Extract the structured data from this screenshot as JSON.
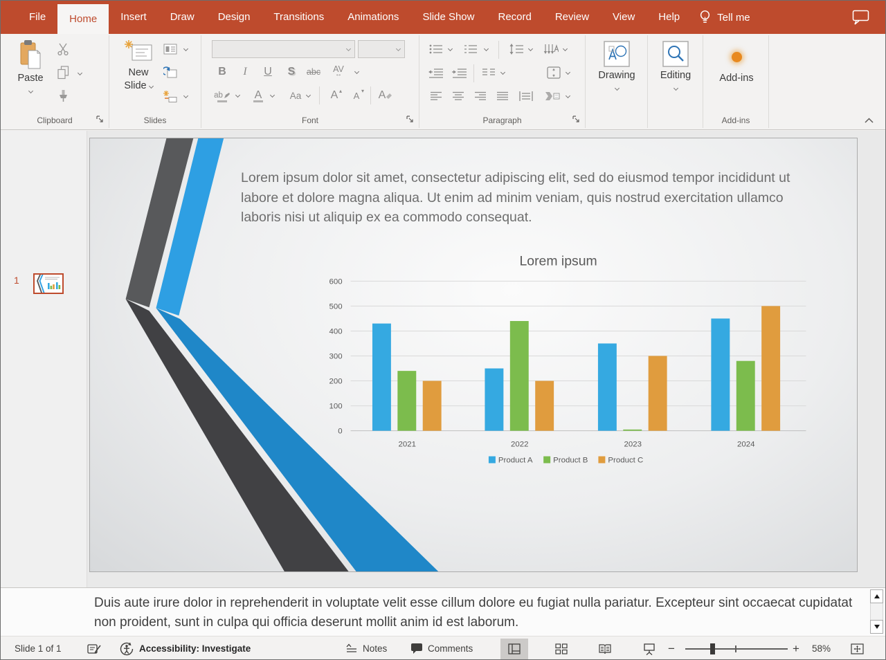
{
  "colors": {
    "accent_red": "#BE4B2D",
    "chart_blue": "#35A9E1",
    "chart_green": "#7CBC4D",
    "chart_orange": "#E09C3E",
    "band_dark_top": "#58595B",
    "band_dark_bottom": "#414144",
    "band_blue_top": "#2E9FE3",
    "band_blue_bottom": "#1F87C8"
  },
  "icons": {
    "h_arrow": "↔",
    "up_triangle": "▴",
    "down_triangle": "▾",
    "minus": "−",
    "plus": "+"
  },
  "menu": {
    "tabs": [
      {
        "id": "file",
        "label": "File",
        "selected": false
      },
      {
        "id": "home",
        "label": "Home",
        "selected": true
      },
      {
        "id": "insert",
        "label": "Insert",
        "selected": false
      },
      {
        "id": "draw",
        "label": "Draw",
        "selected": false
      },
      {
        "id": "design",
        "label": "Design",
        "selected": false
      },
      {
        "id": "transitions",
        "label": "Transitions",
        "selected": false
      },
      {
        "id": "animations",
        "label": "Animations",
        "selected": false
      },
      {
        "id": "slide-show",
        "label": "Slide Show",
        "selected": false
      },
      {
        "id": "record",
        "label": "Record",
        "selected": false
      },
      {
        "id": "review",
        "label": "Review",
        "selected": false
      },
      {
        "id": "view",
        "label": "View",
        "selected": false
      },
      {
        "id": "help",
        "label": "Help",
        "selected": false
      }
    ],
    "tell_me": "Tell me"
  },
  "ribbon": {
    "paste_label": "Paste",
    "new_slide_line1": "New",
    "new_slide_line2": "Slide",
    "drawing_label": "Drawing",
    "editing_label": "Editing",
    "addins_label": "Add-ins",
    "group_labels": {
      "clipboard": "Clipboard",
      "slides": "Slides",
      "font": "Font",
      "paragraph": "Paragraph",
      "addins": "Add-ins"
    },
    "font_controls": {
      "bold": "B",
      "italic": "I",
      "underline": "U",
      "shadow": "S",
      "strikethrough": "abc",
      "spacing": "AV",
      "highlight": "ab",
      "font_color": "A",
      "case": "Aa",
      "grow": "A",
      "shrink": "A",
      "clear": "A"
    }
  },
  "thumbnails": {
    "slide_number": "1"
  },
  "slide": {
    "body_text": "Lorem ipsum dolor sit amet, consectetur adipiscing elit, sed do eiusmod tempor incididunt ut labore et dolore magna aliqua. Ut enim ad minim veniam, quis nostrud exercitation ullamco laboris nisi ut aliquip ex ea commodo consequat."
  },
  "chart_data": {
    "type": "bar",
    "title": "Lorem ipsum",
    "categories": [
      "2021",
      "2022",
      "2023",
      "2024"
    ],
    "series": [
      {
        "name": "Product A",
        "color": "#35A9E1",
        "values": [
          430,
          250,
          350,
          450
        ]
      },
      {
        "name": "Product B",
        "color": "#7CBC4D",
        "values": [
          240,
          440,
          5,
          280
        ]
      },
      {
        "name": "Product C",
        "color": "#E09C3E",
        "values": [
          200,
          200,
          300,
          500
        ]
      }
    ],
    "ylim": [
      0,
      600
    ],
    "ytick_step": 100,
    "grid": true,
    "legend_position": "bottom"
  },
  "notes": {
    "text": "Duis aute irure dolor in reprehenderit in voluptate velit esse cillum dolore eu fugiat nulla pariatur. Excepteur sint occaecat cupidatat non proident, sunt in culpa qui officia deserunt mollit anim id est laborum."
  },
  "status": {
    "slide_indicator": "Slide 1 of 1",
    "accessibility": "Accessibility: Investigate",
    "notes_label": "Notes",
    "comments_label": "Comments",
    "zoom_level": "58%"
  }
}
